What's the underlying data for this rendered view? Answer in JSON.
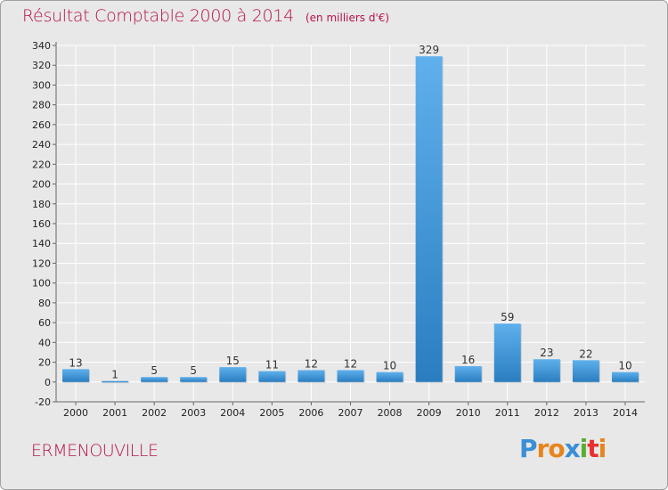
{
  "title": {
    "main": "Résultat Comptable 2000 à 2014",
    "unit": "(en milliers d'€)"
  },
  "commune": "ERMENOUVILLE",
  "logo": {
    "text": "Proxiti",
    "letters": [
      "P",
      "r",
      "o",
      "x",
      "i",
      "t",
      "i"
    ],
    "colors": [
      "#3a8fd6",
      "#e8841c",
      "#e8841c",
      "#3a8fd6",
      "#58b030",
      "#e83030",
      "#e8841c"
    ]
  },
  "colors": {
    "bar_top": "#5fb0ec",
    "bar_bottom": "#2a7ec0",
    "title": "#b5124a",
    "grid": "#ffffff",
    "background": "#e8e8e8"
  },
  "chart_data": {
    "type": "bar",
    "title": "Résultat Comptable 2000 à 2014",
    "ylabel": "en milliers d'€",
    "xlabel": "",
    "categories": [
      "2000",
      "2001",
      "2002",
      "2003",
      "2004",
      "2005",
      "2006",
      "2007",
      "2008",
      "2009",
      "2010",
      "2011",
      "2012",
      "2013",
      "2014"
    ],
    "values": [
      13,
      1,
      5,
      5,
      15,
      11,
      12,
      12,
      10,
      329,
      16,
      59,
      23,
      22,
      10
    ],
    "data_labels": [
      "13",
      "1",
      "5",
      "5",
      "15",
      "11",
      "12",
      "12",
      "10",
      "329",
      "16",
      "59",
      "23",
      "22",
      "10"
    ],
    "ylim": [
      -20,
      340
    ],
    "yticks": [
      -20,
      0,
      20,
      40,
      60,
      80,
      100,
      120,
      140,
      160,
      180,
      200,
      220,
      240,
      260,
      280,
      300,
      320,
      340
    ],
    "grid": true
  }
}
